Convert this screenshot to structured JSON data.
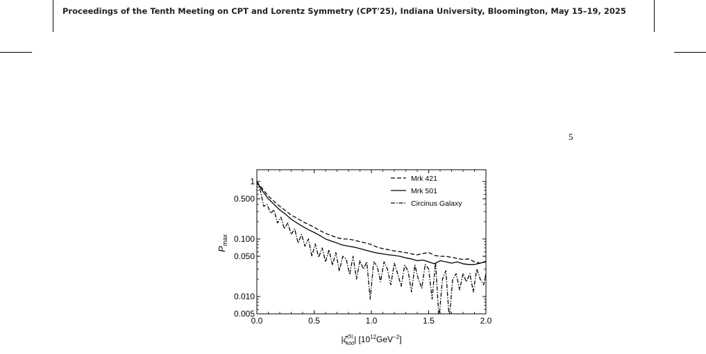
{
  "page": {
    "header": "Proceedings of the Tenth Meeting on CPT and Lorentz Symmetry (CPT'25), Indiana University, Bloomington, May 15–19, 2025",
    "page_number": "5"
  },
  "chart_data": {
    "type": "line",
    "ylabel_main": "P",
    "ylabel_sub": "max",
    "xlabel": {
      "open_bar": "|",
      "symbol": "ζ",
      "sup": "(5)",
      "sub": "k00",
      "close_bar": "|",
      "unit_prefix": " [10",
      "unit_exp": "12",
      "unit_mid": "GeV",
      "unit_exp2": "−2",
      "unit_suffix": "]"
    },
    "x_ticks": [
      "0.0",
      "0.5",
      "1.0",
      "1.5",
      "2.0"
    ],
    "x_tick_values": [
      0,
      0.5,
      1.0,
      1.5,
      2.0
    ],
    "y_ticks": [
      "0.005",
      "0.010",
      "0.050",
      "0.100",
      "0.500",
      "1"
    ],
    "y_tick_values": [
      0.005,
      0.01,
      0.05,
      0.1,
      0.5,
      1
    ],
    "xlim": [
      0,
      2.0
    ],
    "ylim": [
      0.005,
      1.6
    ],
    "y_scale": "log",
    "legend_position": "top-right",
    "series": [
      {
        "name": "Mrk 421",
        "style": "dashed",
        "x": [
          0,
          0.02,
          0.05,
          0.1,
          0.15,
          0.2,
          0.25,
          0.3,
          0.35,
          0.4,
          0.45,
          0.5,
          0.55,
          0.6,
          0.65,
          0.7,
          0.75,
          0.8,
          0.85,
          0.9,
          0.95,
          1.0,
          1.05,
          1.1,
          1.15,
          1.2,
          1.25,
          1.3,
          1.35,
          1.4,
          1.45,
          1.5,
          1.55,
          1.6,
          1.65,
          1.7,
          1.75,
          1.8,
          1.85,
          1.9,
          1.95,
          2.0
        ],
        "y": [
          1.0,
          0.88,
          0.74,
          0.56,
          0.45,
          0.37,
          0.31,
          0.26,
          0.23,
          0.2,
          0.18,
          0.16,
          0.14,
          0.125,
          0.115,
          0.105,
          0.1,
          0.1,
          0.095,
          0.09,
          0.085,
          0.08,
          0.072,
          0.068,
          0.065,
          0.062,
          0.06,
          0.058,
          0.055,
          0.053,
          0.056,
          0.058,
          0.052,
          0.05,
          0.05,
          0.048,
          0.046,
          0.044,
          0.045,
          0.04,
          0.038,
          0.04
        ]
      },
      {
        "name": "Mrk 501",
        "style": "solid",
        "x": [
          0,
          0.02,
          0.05,
          0.1,
          0.15,
          0.2,
          0.25,
          0.3,
          0.35,
          0.4,
          0.45,
          0.5,
          0.55,
          0.6,
          0.65,
          0.7,
          0.75,
          0.8,
          0.85,
          0.9,
          0.95,
          1.0,
          1.05,
          1.1,
          1.15,
          1.2,
          1.25,
          1.3,
          1.35,
          1.4,
          1.45,
          1.5,
          1.55,
          1.6,
          1.65,
          1.7,
          1.75,
          1.8,
          1.85,
          1.9,
          1.95,
          2.0
        ],
        "y": [
          1.0,
          0.85,
          0.68,
          0.5,
          0.4,
          0.32,
          0.27,
          0.22,
          0.19,
          0.165,
          0.145,
          0.13,
          0.115,
          0.1,
          0.092,
          0.085,
          0.078,
          0.075,
          0.072,
          0.068,
          0.064,
          0.06,
          0.057,
          0.055,
          0.053,
          0.052,
          0.05,
          0.047,
          0.045,
          0.042,
          0.043,
          0.04,
          0.037,
          0.042,
          0.04,
          0.038,
          0.04,
          0.037,
          0.036,
          0.036,
          0.038,
          0.041
        ]
      },
      {
        "name": "Circinus Galaxy",
        "style": "dashdot",
        "x": [
          0,
          0.03,
          0.06,
          0.09,
          0.12,
          0.15,
          0.18,
          0.21,
          0.24,
          0.27,
          0.3,
          0.33,
          0.36,
          0.39,
          0.42,
          0.45,
          0.48,
          0.51,
          0.54,
          0.57,
          0.6,
          0.63,
          0.66,
          0.69,
          0.72,
          0.75,
          0.78,
          0.81,
          0.84,
          0.87,
          0.9,
          0.93,
          0.96,
          0.99,
          1.02,
          1.05,
          1.08,
          1.11,
          1.14,
          1.17,
          1.2,
          1.23,
          1.26,
          1.29,
          1.32,
          1.35,
          1.38,
          1.41,
          1.44,
          1.47,
          1.5,
          1.53,
          1.56,
          1.59,
          1.62,
          1.65,
          1.68,
          1.71,
          1.74,
          1.77,
          1.8,
          1.83,
          1.86,
          1.89,
          1.92,
          1.95,
          1.98,
          2.0
        ],
        "y": [
          1.0,
          0.7,
          0.37,
          0.4,
          0.28,
          0.32,
          0.19,
          0.24,
          0.15,
          0.19,
          0.12,
          0.15,
          0.085,
          0.12,
          0.075,
          0.1,
          0.05,
          0.082,
          0.048,
          0.07,
          0.04,
          0.065,
          0.035,
          0.058,
          0.028,
          0.05,
          0.045,
          0.024,
          0.05,
          0.02,
          0.042,
          0.03,
          0.04,
          0.009,
          0.04,
          0.034,
          0.018,
          0.04,
          0.03,
          0.016,
          0.038,
          0.025,
          0.015,
          0.035,
          0.028,
          0.012,
          0.035,
          0.02,
          0.014,
          0.036,
          0.03,
          0.009,
          0.04,
          0.004,
          0.02,
          0.028,
          0.004,
          0.02,
          0.025,
          0.013,
          0.025,
          0.018,
          0.025,
          0.012,
          0.03,
          0.02,
          0.016,
          0.025
        ]
      }
    ]
  }
}
